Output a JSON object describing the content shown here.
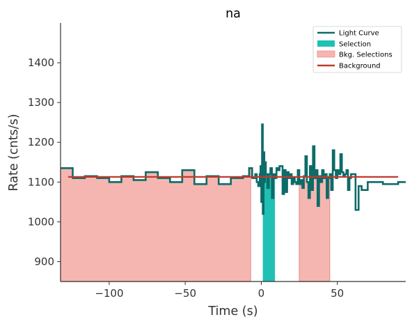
{
  "chart_data": {
    "type": "line",
    "title": "na",
    "xlabel": "Time (s)",
    "ylabel": "Rate (cnts/s)",
    "xlim": [
      -132,
      95
    ],
    "ylim": [
      850,
      1500
    ],
    "xticks": [
      -100,
      -50,
      0,
      50
    ],
    "xtick_labels": [
      "−100",
      "−50",
      "0",
      "50"
    ],
    "yticks": [
      900,
      1000,
      1100,
      1200,
      1300,
      1400
    ],
    "ytick_labels": [
      "900",
      "1000",
      "1100",
      "1200",
      "1300",
      "1400"
    ],
    "grid": false,
    "legend": {
      "position": "top-right",
      "entries": [
        "Light Curve",
        "Selection",
        "Bkg. Selections",
        "Background"
      ]
    },
    "colors": {
      "light_curve": "#0d6b68",
      "selection": "#20c0b4",
      "bkg_selection": "#f5b6b1",
      "bkg_selection_edge": "#e8948d",
      "background": "#c0392b"
    },
    "series": [
      {
        "name": "Light Curve",
        "style": "steps",
        "x": [
          -132,
          -124,
          -116,
          -108,
          -100,
          -92,
          -84,
          -76,
          -68,
          -60,
          -52,
          -44,
          -36,
          -28,
          -20,
          -12,
          -8,
          -6,
          -4,
          -3,
          -2,
          -1,
          -0.5,
          0,
          0.5,
          1,
          1.5,
          2,
          2.5,
          3,
          4,
          5,
          6,
          7,
          8,
          9,
          10,
          11,
          12,
          14,
          15,
          16,
          17,
          18,
          19,
          20,
          21,
          22,
          23,
          24,
          25,
          26,
          27,
          28,
          29,
          30,
          31,
          32,
          33,
          34,
          35,
          36,
          37,
          38,
          39,
          40,
          41,
          42,
          43,
          44,
          45,
          46,
          47,
          48,
          49,
          50,
          51,
          52,
          53,
          54,
          55,
          56,
          57,
          58,
          59,
          60,
          62,
          64,
          66,
          70,
          80,
          90,
          95
        ],
        "y": [
          1135,
          1110,
          1115,
          1110,
          1100,
          1115,
          1105,
          1125,
          1110,
          1100,
          1130,
          1095,
          1115,
          1095,
          1110,
          1115,
          1135,
          1110,
          1120,
          1100,
          1090,
          1120,
          1140,
          1050,
          1245,
          1020,
          1175,
          1100,
          1150,
          1120,
          1085,
          1120,
          1135,
          1060,
          1120,
          1110,
          1135,
          1130,
          1140,
          1070,
          1130,
          1075,
          1125,
          1110,
          1120,
          1095,
          1110,
          1100,
          1095,
          1130,
          1095,
          1105,
          1085,
          1115,
          1165,
          1100,
          1060,
          1140,
          1080,
          1190,
          1110,
          1130,
          1040,
          1115,
          1100,
          1130,
          1110,
          1120,
          1060,
          1110,
          1120,
          1080,
          1180,
          1130,
          1110,
          1130,
          1120,
          1170,
          1125,
          1115,
          1120,
          1130,
          1080,
          1110,
          1120,
          1120,
          1030,
          1090,
          1080,
          1100,
          1095,
          1100,
          1100
        ]
      },
      {
        "name": "Background",
        "style": "line",
        "x": [
          -127,
          90
        ],
        "y": [
          1113,
          1113
        ]
      }
    ],
    "selection": {
      "label": "Selection",
      "x_ranges": [
        [
          1,
          9
        ]
      ]
    },
    "bkg_selections": {
      "label": "Bkg. Selections",
      "x_ranges": [
        [
          -132,
          -7
        ],
        [
          25,
          45
        ]
      ]
    }
  }
}
